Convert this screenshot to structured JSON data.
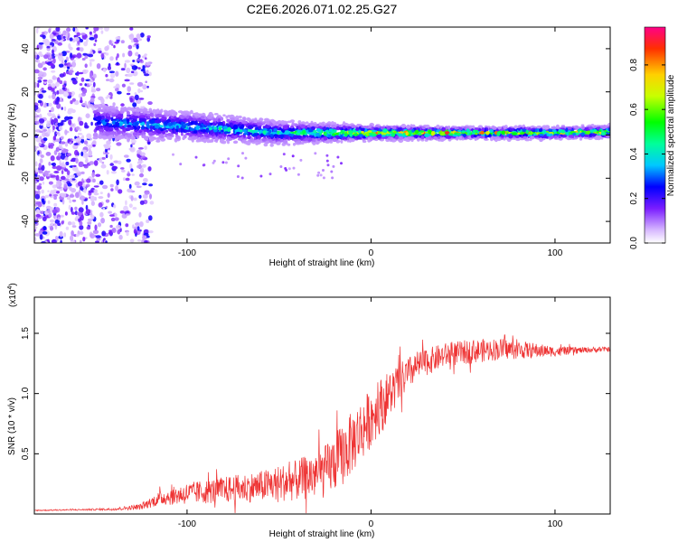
{
  "title": "C2E6.2026.071.02.25.G27",
  "chart_data": [
    {
      "type": "heatmap",
      "title": "",
      "xlabel": "Height of straight line (km)",
      "ylabel": "Frequency (Hz)",
      "xlim": [
        -183,
        130
      ],
      "ylim": [
        -50,
        50
      ],
      "xticks": [
        -100,
        0,
        100
      ],
      "xtick_labels": [
        "-100",
        "0",
        "100"
      ],
      "yticks": [
        -40,
        -20,
        0,
        20,
        40
      ],
      "ytick_labels": [
        "-40",
        "-20",
        "0",
        "20",
        "40"
      ],
      "grid": false,
      "description_series": [
        {
          "name": "noise_region",
          "x_range": [
            -183,
            -125
          ],
          "freq_range": [
            -50,
            50
          ],
          "amplitude": 0.15
        },
        {
          "name": "signal_band",
          "x": [
            -150,
            -100,
            -50,
            0,
            50,
            100,
            130
          ],
          "center_freq": [
            6,
            4,
            1,
            1,
            1,
            1,
            1.5
          ],
          "half_width": [
            6,
            5,
            4,
            2.5,
            2,
            2,
            2
          ],
          "peak_amplitude": [
            0.3,
            0.4,
            0.45,
            0.9,
            0.9,
            0.9,
            0.85
          ]
        }
      ],
      "colorbar": {
        "label": "Normalized spectral amplitude",
        "range": [
          0,
          0.97
        ],
        "ticks": [
          0.0,
          0.2,
          0.4,
          0.6,
          0.8
        ],
        "tick_labels": [
          "0.0",
          "0.2",
          "0.4",
          "0.6",
          "0.8"
        ]
      }
    },
    {
      "type": "line",
      "title": "",
      "xlabel": "Height of straight line (km)",
      "ylabel": "SNR (10 * v/v)",
      "ylabel_multiplier": "(x10",
      "ylabel_exponent": "4",
      "ylabel_multiplier_close": ")",
      "xlim": [
        -183,
        130
      ],
      "ylim": [
        0,
        18000
      ],
      "xticks": [
        -100,
        0,
        100
      ],
      "xtick_labels": [
        "-100",
        "0",
        "100"
      ],
      "yticks": [
        5000,
        10000,
        15000
      ],
      "ytick_labels": [
        "0.5",
        "1.0",
        "1.5"
      ],
      "color": "#ee3333",
      "grid": false,
      "series": [
        {
          "name": "SNR",
          "x": [
            -183,
            -160,
            -140,
            -125,
            -115,
            -100,
            -80,
            -60,
            -40,
            -25,
            -15,
            -5,
            5,
            15,
            25,
            40,
            55,
            70,
            85,
            100,
            115,
            130
          ],
          "y": [
            300,
            350,
            400,
            600,
            1300,
            1700,
            2000,
            2300,
            2800,
            3500,
            5000,
            7000,
            9000,
            10800,
            12300,
            13200,
            13500,
            13700,
            13600,
            13500,
            13600,
            13700
          ],
          "noise_amplitude": [
            50,
            60,
            100,
            250,
            600,
            900,
            1100,
            1300,
            1700,
            2200,
            2600,
            2600,
            2300,
            1700,
            1200,
            1000,
            1000,
            900,
            700,
            400,
            250,
            200
          ]
        }
      ]
    }
  ]
}
